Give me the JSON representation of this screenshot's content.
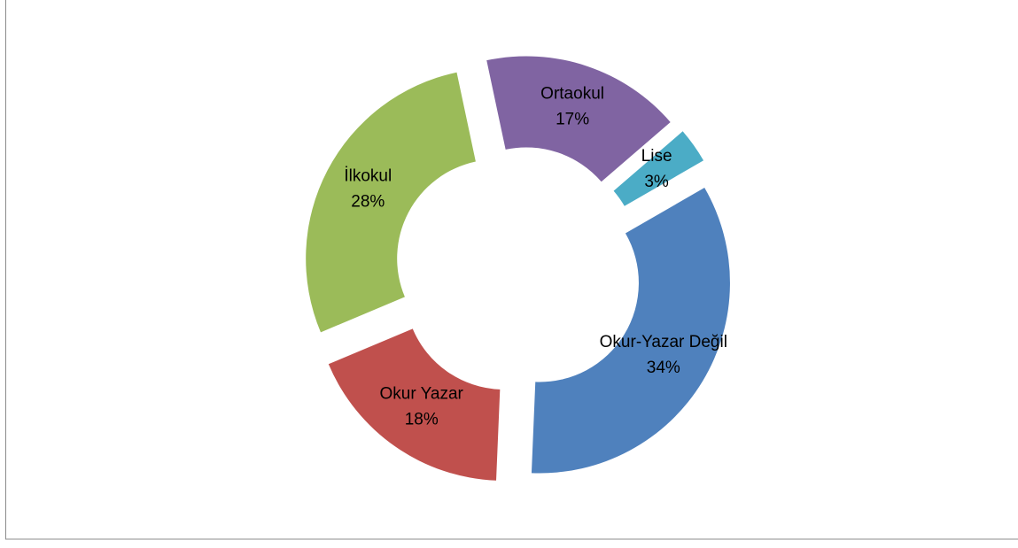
{
  "chart_data": {
    "type": "doughnut",
    "categories": [
      "Okur-Yazar Değil",
      "Okur Yazar",
      "İlkokul",
      "Ortaokul",
      "Lise"
    ],
    "values": [
      34,
      18,
      28,
      17,
      3
    ],
    "value_labels": [
      "34%",
      "18%",
      "28%",
      "17%",
      "3%"
    ],
    "colors": [
      "#4f81bd",
      "#c0504d",
      "#9bbb59",
      "#8064a2",
      "#4bacc6"
    ],
    "exploded": true
  }
}
